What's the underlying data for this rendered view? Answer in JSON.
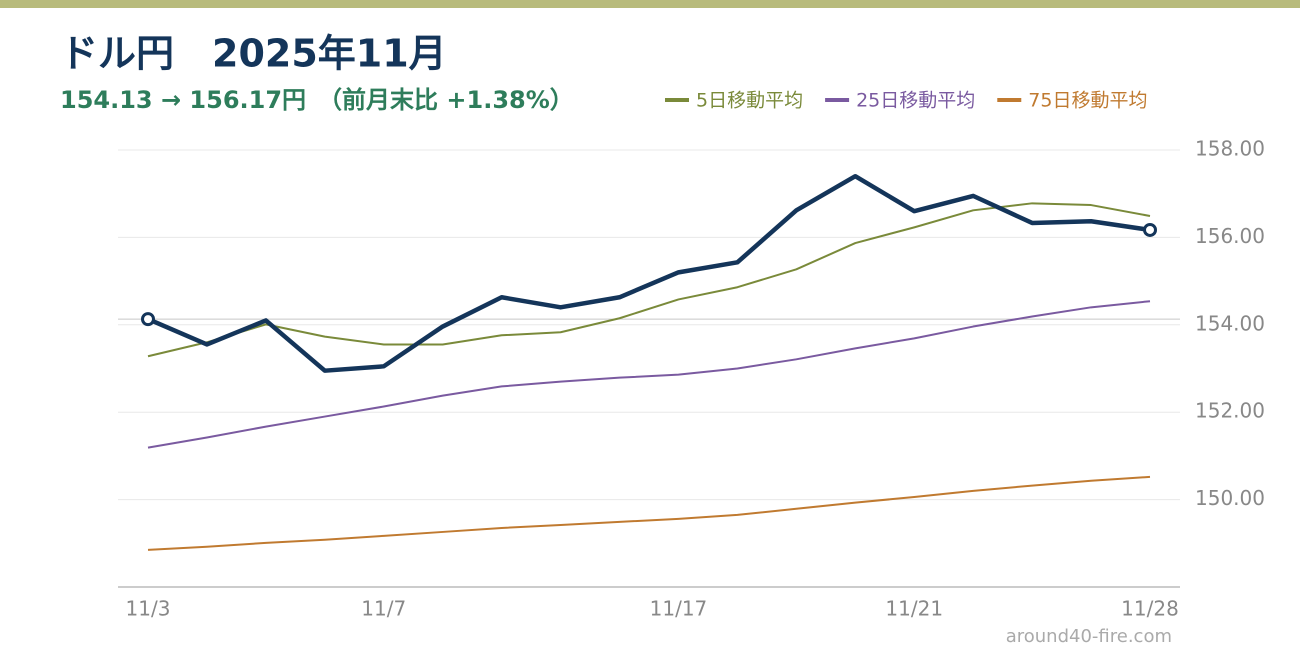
{
  "chart_data": {
    "type": "line",
    "title": "ドル円　2025年11月",
    "subtitle": "154.13 → 156.17円　（前月末比 +1.38%）",
    "source": "around40-fire.com",
    "categories": [
      "11/3",
      null,
      null,
      null,
      "11/7",
      null,
      null,
      null,
      null,
      "11/17",
      null,
      null,
      null,
      "11/21",
      null,
      null,
      null,
      "11/28"
    ],
    "series": [
      {
        "color": "#14355a",
        "values": [
          154.13,
          153.55,
          154.1,
          152.95,
          153.05,
          153.96,
          154.63,
          154.4,
          154.63,
          155.2,
          155.43,
          156.62,
          157.4,
          156.6,
          156.95,
          156.33,
          156.37,
          156.17
        ]
      },
      {
        "name": "5日移動平均",
        "color": "#7a8a3a",
        "values": [
          153.28,
          153.6,
          154.01,
          153.73,
          153.55,
          153.55,
          153.76,
          153.83,
          154.15,
          154.58,
          154.86,
          155.27,
          155.87,
          156.23,
          156.62,
          156.78,
          156.74,
          156.49
        ]
      },
      {
        "name": "25日移動平均",
        "color": "#7a5aa0",
        "values": [
          151.19,
          151.42,
          151.67,
          151.9,
          152.13,
          152.38,
          152.59,
          152.7,
          152.79,
          152.86,
          153.0,
          153.21,
          153.46,
          153.69,
          153.96,
          154.19,
          154.4,
          154.54
        ]
      },
      {
        "name": "75日移動平均",
        "color": "#c07a30",
        "values": [
          148.85,
          148.92,
          149.01,
          149.08,
          149.17,
          149.26,
          149.35,
          149.42,
          149.49,
          149.56,
          149.65,
          149.79,
          149.93,
          150.06,
          150.2,
          150.32,
          150.43,
          150.52
        ]
      }
    ],
    "reference_line": 154.13,
    "ylim": [
      148,
      158
    ],
    "yticks": [
      {
        "value": 150,
        "label": "150.00"
      },
      {
        "value": 152,
        "label": "152.00"
      },
      {
        "value": 154,
        "label": "154.00"
      },
      {
        "value": 156,
        "label": "156.00"
      },
      {
        "value": 158,
        "label": "158.00"
      }
    ],
    "grid": true,
    "legend_position": "top-right"
  }
}
